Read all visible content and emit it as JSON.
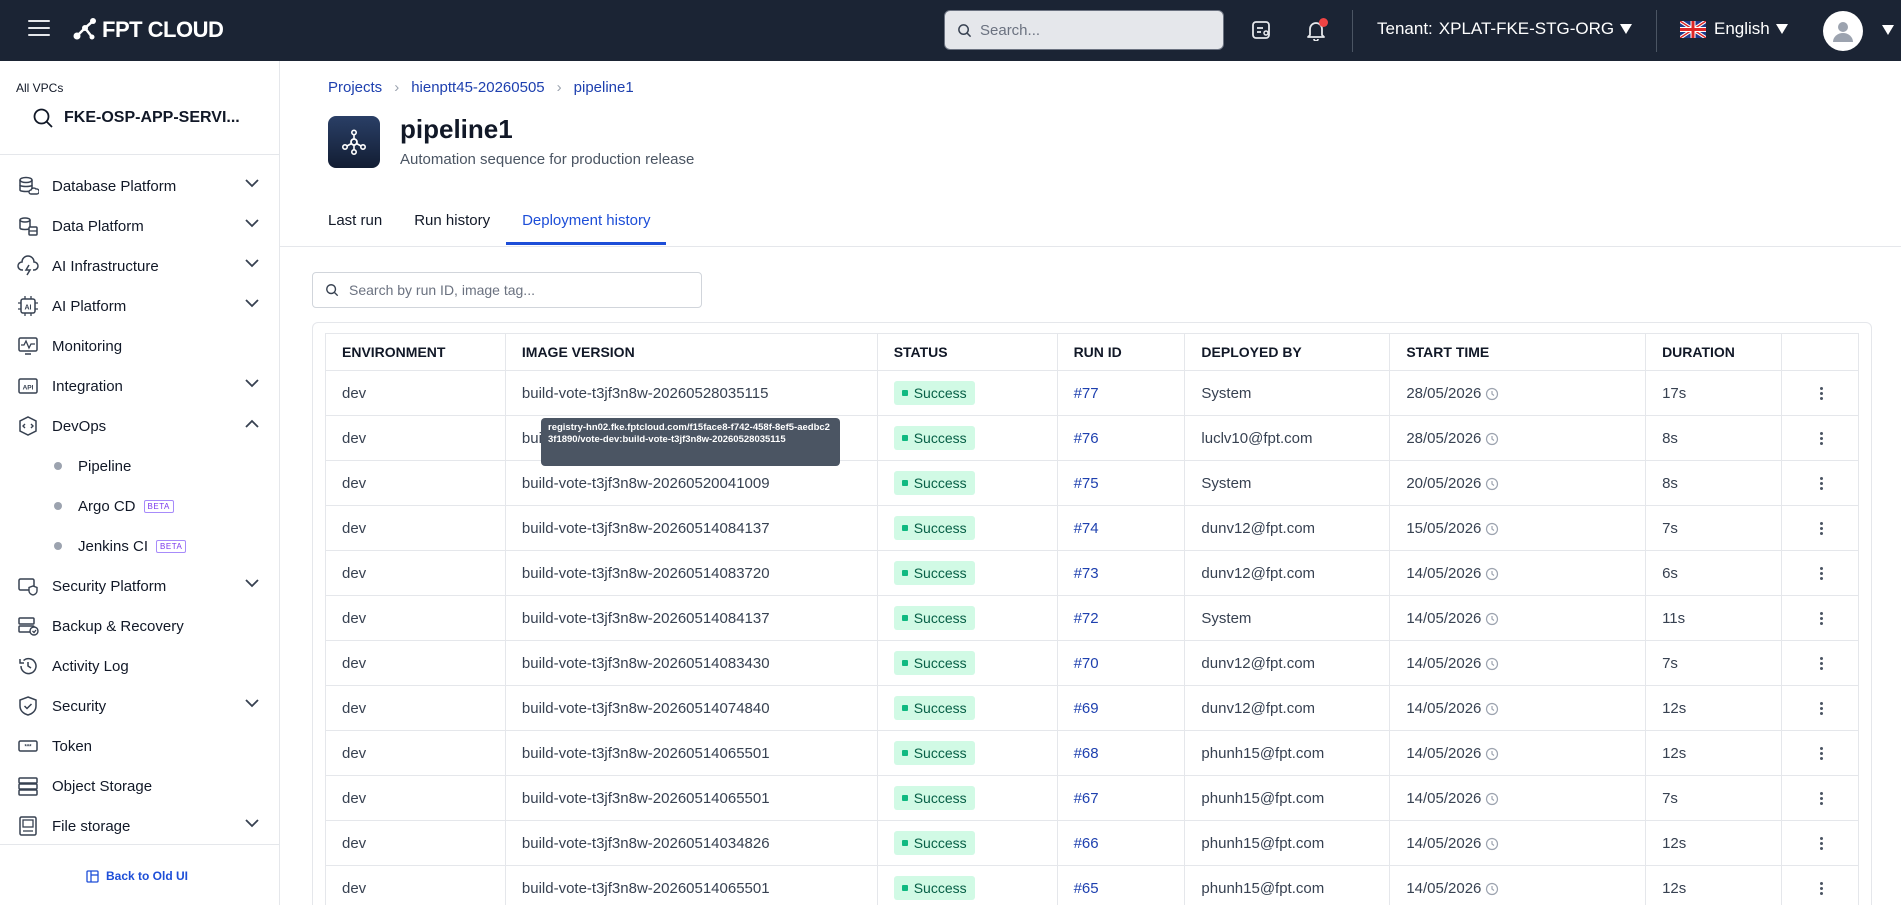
{
  "topbar": {
    "logo_text": "FPT CLOUD",
    "search_placeholder": "Search...",
    "tenant_label": "Tenant:",
    "tenant_value": "XPLAT-FKE-STG-ORG",
    "language": "English"
  },
  "sidebar": {
    "vpc_label": "All VPCs",
    "vpc_selected": "FKE-OSP-APP-SERVI...",
    "items": [
      {
        "label": "Database Platform",
        "icon": "database-cloud-icon",
        "expandable": true,
        "expanded": false
      },
      {
        "label": "Data Platform",
        "icon": "data-stack-icon",
        "expandable": true,
        "expanded": false
      },
      {
        "label": "AI Infrastructure",
        "icon": "cloud-lightning-icon",
        "expandable": true,
        "expanded": false
      },
      {
        "label": "AI Platform",
        "icon": "ai-chip-icon",
        "expandable": true,
        "expanded": false
      },
      {
        "label": "Monitoring",
        "icon": "monitor-pulse-icon",
        "expandable": false
      },
      {
        "label": "Integration",
        "icon": "api-icon",
        "expandable": true,
        "expanded": false
      },
      {
        "label": "DevOps",
        "icon": "devops-icon",
        "expandable": true,
        "expanded": true
      }
    ],
    "devops_children": [
      {
        "label": "Pipeline",
        "beta": false
      },
      {
        "label": "Argo CD",
        "beta": true
      },
      {
        "label": "Jenkins CI",
        "beta": true
      }
    ],
    "beta_label": "BETA",
    "items_after": [
      {
        "label": "Security Platform",
        "icon": "security-platform-icon",
        "expandable": true
      },
      {
        "label": "Backup & Recovery",
        "icon": "backup-icon",
        "expandable": false
      },
      {
        "label": "Activity Log",
        "icon": "history-icon",
        "expandable": false
      },
      {
        "label": "Security",
        "icon": "shield-icon",
        "expandable": true
      },
      {
        "label": "Token",
        "icon": "token-icon",
        "expandable": false
      },
      {
        "label": "Object Storage",
        "icon": "object-storage-icon",
        "expandable": false
      },
      {
        "label": "File storage",
        "icon": "file-storage-icon",
        "expandable": true
      }
    ],
    "back_label": "Back to Old UI"
  },
  "breadcrumb": [
    "Projects",
    "hienptt45-20260505",
    "pipeline1"
  ],
  "page": {
    "title": "pipeline1",
    "subtitle": "Automation sequence for production release"
  },
  "tabs": [
    {
      "label": "Last run",
      "active": false
    },
    {
      "label": "Run history",
      "active": false
    },
    {
      "label": "Deployment history",
      "active": true
    }
  ],
  "filter": {
    "placeholder": "Search by run ID, image tag..."
  },
  "table": {
    "columns": [
      "ENVIRONMENT",
      "IMAGE VERSION",
      "STATUS",
      "RUN ID",
      "DEPLOYED BY",
      "START TIME",
      "DURATION"
    ],
    "rows": [
      {
        "env": "dev",
        "image": "build-vote-t3jf3n8w-20260528035115",
        "status": "Success",
        "run_id": "#77",
        "by": "System",
        "start": "28/05/2026",
        "duration": "17s"
      },
      {
        "env": "dev",
        "image": "build-vote-t3jf3n8w-20260528035115",
        "status": "Success",
        "run_id": "#76",
        "by": "luclv10@fpt.com",
        "start": "28/05/2026",
        "duration": "8s"
      },
      {
        "env": "dev",
        "image": "build-vote-t3jf3n8w-20260520041009",
        "status": "Success",
        "run_id": "#75",
        "by": "System",
        "start": "20/05/2026",
        "duration": "8s"
      },
      {
        "env": "dev",
        "image": "build-vote-t3jf3n8w-20260514084137",
        "status": "Success",
        "run_id": "#74",
        "by": "dunv12@fpt.com",
        "start": "15/05/2026",
        "duration": "7s"
      },
      {
        "env": "dev",
        "image": "build-vote-t3jf3n8w-20260514083720",
        "status": "Success",
        "run_id": "#73",
        "by": "dunv12@fpt.com",
        "start": "14/05/2026",
        "duration": "6s"
      },
      {
        "env": "dev",
        "image": "build-vote-t3jf3n8w-20260514084137",
        "status": "Success",
        "run_id": "#72",
        "by": "System",
        "start": "14/05/2026",
        "duration": "11s"
      },
      {
        "env": "dev",
        "image": "build-vote-t3jf3n8w-20260514083430",
        "status": "Success",
        "run_id": "#70",
        "by": "dunv12@fpt.com",
        "start": "14/05/2026",
        "duration": "7s"
      },
      {
        "env": "dev",
        "image": "build-vote-t3jf3n8w-20260514074840",
        "status": "Success",
        "run_id": "#69",
        "by": "dunv12@fpt.com",
        "start": "14/05/2026",
        "duration": "12s"
      },
      {
        "env": "dev",
        "image": "build-vote-t3jf3n8w-20260514065501",
        "status": "Success",
        "run_id": "#68",
        "by": "phunh15@fpt.com",
        "start": "14/05/2026",
        "duration": "12s"
      },
      {
        "env": "dev",
        "image": "build-vote-t3jf3n8w-20260514065501",
        "status": "Success",
        "run_id": "#67",
        "by": "phunh15@fpt.com",
        "start": "14/05/2026",
        "duration": "7s"
      },
      {
        "env": "dev",
        "image": "build-vote-t3jf3n8w-20260514034826",
        "status": "Success",
        "run_id": "#66",
        "by": "phunh15@fpt.com",
        "start": "14/05/2026",
        "duration": "12s"
      },
      {
        "env": "dev",
        "image": "build-vote-t3jf3n8w-20260514065501",
        "status": "Success",
        "run_id": "#65",
        "by": "phunh15@fpt.com",
        "start": "14/05/2026",
        "duration": "12s"
      }
    ]
  },
  "tooltip": {
    "text": "registry-hn02.fke.fptcloud.com/f15face8-f742-458f-8ef5-aedbc23f1890/vote-dev:build-vote-t3jf3n8w-20260528035115",
    "visible_row": 1
  },
  "colors": {
    "topbar_bg": "#1b2434",
    "accent": "#1d4ed8",
    "success_bg": "#d1fae5",
    "success_text": "#065f46"
  }
}
